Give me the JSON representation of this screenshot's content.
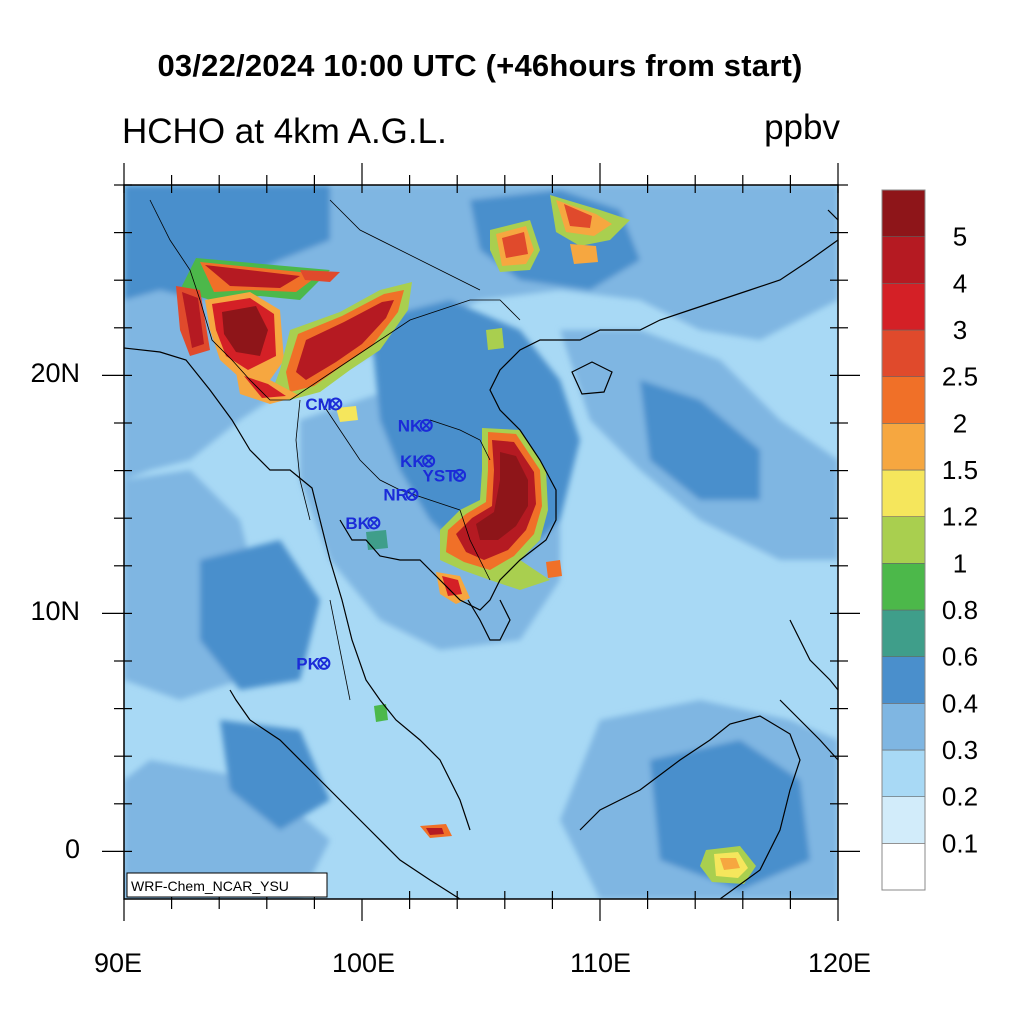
{
  "title": "03/22/2024 10:00 UTC (+46hours from start)",
  "subtitle": "HCHO at 4km A.G.L.",
  "units": "ppbv",
  "watermark": "WRF-Chem_NCAR_YSU",
  "axes": {
    "x_ticks": [
      "90E",
      "100E",
      "110E",
      "120E"
    ],
    "y_ticks": [
      "20N",
      "10N",
      "0"
    ],
    "lon_range": [
      90,
      120
    ],
    "lat_range": [
      -2,
      28
    ]
  },
  "colorbar": {
    "levels": [
      "0.1",
      "0.2",
      "0.3",
      "0.4",
      "0.6",
      "0.8",
      "1",
      "1.2",
      "1.5",
      "2",
      "2.5",
      "3",
      "4",
      "5"
    ],
    "colors": [
      "#ffffff",
      "#d2ecfa",
      "#a8d9f5",
      "#7fb6e2",
      "#4a8fcc",
      "#3f9e8a",
      "#4cb84a",
      "#a9cf4f",
      "#f5e65c",
      "#f6a740",
      "#f07028",
      "#e04a2c",
      "#d42026",
      "#b51a22",
      "#8e1519"
    ]
  },
  "stations": [
    {
      "code": "CM",
      "lon": 98.9,
      "lat": 18.8
    },
    {
      "code": "NK",
      "lon": 102.7,
      "lat": 17.9
    },
    {
      "code": "KK",
      "lon": 102.8,
      "lat": 16.4
    },
    {
      "code": "YST",
      "lon": 104.1,
      "lat": 15.8
    },
    {
      "code": "NR",
      "lon": 102.1,
      "lat": 15.0
    },
    {
      "code": "BK",
      "lon": 100.5,
      "lat": 13.8
    },
    {
      "code": "PK",
      "lon": 98.4,
      "lat": 7.9
    }
  ]
}
